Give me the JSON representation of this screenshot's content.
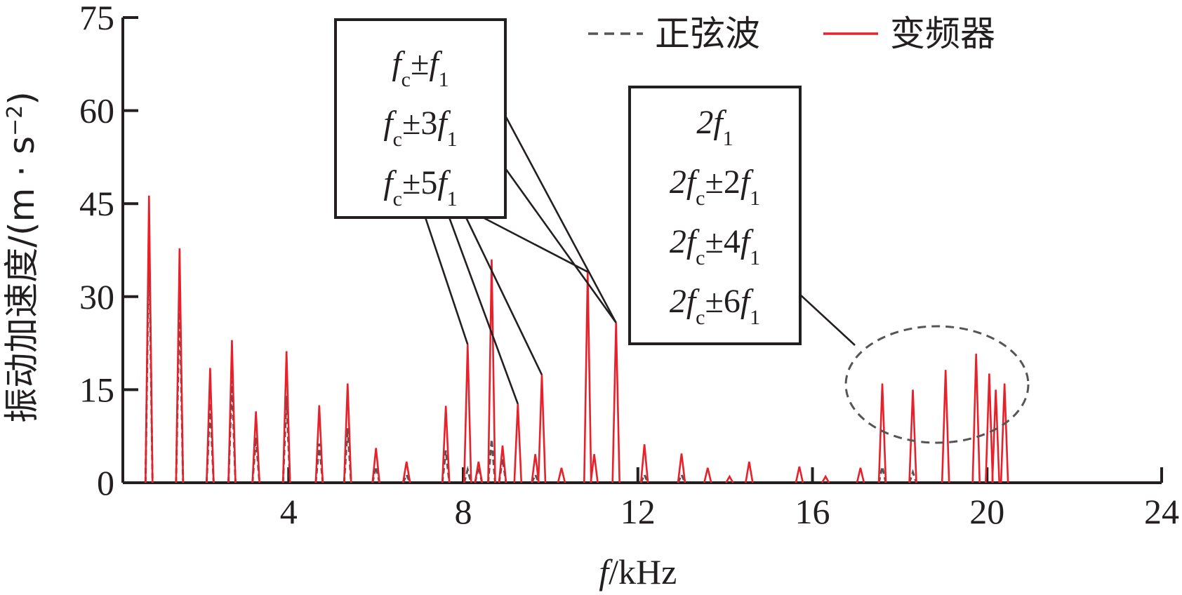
{
  "chart_data": {
    "type": "line",
    "title": "",
    "xlabel_italic": "f",
    "xlabel_unit": "/kHz",
    "ylabel": "振动加速度/(m · s",
    "ylabel_sup": "−2",
    "ylabel_close": ")",
    "xlim": [
      0.2,
      24
    ],
    "ylim": [
      0,
      75
    ],
    "xticks": [
      4,
      8,
      12,
      16,
      20,
      24
    ],
    "yticks": [
      0,
      15,
      30,
      45,
      60,
      75
    ],
    "legend_position": "top-right",
    "legend": [
      {
        "label": "正弦波",
        "style": "dashed",
        "color": "#555555"
      },
      {
        "label": "变频器",
        "style": "solid",
        "color": "#e8202a"
      }
    ],
    "series": [
      {
        "name": "变频器",
        "color": "#e8202a",
        "peaks": [
          [
            0.8,
            46.3
          ],
          [
            1.5,
            37.8
          ],
          [
            2.2,
            18.5
          ],
          [
            2.7,
            23.0
          ],
          [
            3.25,
            11.5
          ],
          [
            3.95,
            21.2
          ],
          [
            4.7,
            12.5
          ],
          [
            5.35,
            16.0
          ],
          [
            6.0,
            5.6
          ],
          [
            6.7,
            3.4
          ],
          [
            7.6,
            12.4
          ],
          [
            8.1,
            22.3
          ],
          [
            8.35,
            3.4
          ],
          [
            8.65,
            36.0
          ],
          [
            8.9,
            6.0
          ],
          [
            9.25,
            12.7
          ],
          [
            9.65,
            4.6
          ],
          [
            9.8,
            17.4
          ],
          [
            10.25,
            2.4
          ],
          [
            10.85,
            34.0
          ],
          [
            11.0,
            4.6
          ],
          [
            11.5,
            25.8
          ],
          [
            12.15,
            6.2
          ],
          [
            13.0,
            4.7
          ],
          [
            13.6,
            2.4
          ],
          [
            14.1,
            1.0
          ],
          [
            14.55,
            3.4
          ],
          [
            15.7,
            2.6
          ],
          [
            16.3,
            1.0
          ],
          [
            17.1,
            2.4
          ],
          [
            17.6,
            16.0
          ],
          [
            18.3,
            15.0
          ],
          [
            19.05,
            18.2
          ],
          [
            19.75,
            20.8
          ],
          [
            20.05,
            17.6
          ],
          [
            20.2,
            15.0
          ],
          [
            20.4,
            16.0
          ]
        ]
      },
      {
        "name": "正弦波",
        "color": "#555555",
        "peaks": [
          [
            0.8,
            40.5
          ],
          [
            1.5,
            30.5
          ],
          [
            2.2,
            12.9
          ],
          [
            2.7,
            16.5
          ],
          [
            3.25,
            7.3
          ],
          [
            3.95,
            14.0
          ],
          [
            4.7,
            6.3
          ],
          [
            5.35,
            8.8
          ],
          [
            6.0,
            2.6
          ],
          [
            6.7,
            1.3
          ],
          [
            7.6,
            5.2
          ],
          [
            8.1,
            2.1
          ],
          [
            8.35,
            2.6
          ],
          [
            8.65,
            7.0
          ],
          [
            8.9,
            3.9
          ],
          [
            9.65,
            1.3
          ],
          [
            12.15,
            1.3
          ],
          [
            13.0,
            1.3
          ],
          [
            17.6,
            2.6
          ],
          [
            18.3,
            1.7
          ]
        ]
      }
    ],
    "annotations": [
      {
        "lines": [
          {
            "a": "f",
            "sub": "c",
            "b": "±f",
            "sub2": "1"
          },
          {
            "a": "f",
            "sub": "c",
            "b": "±3f",
            "sub2": "1"
          },
          {
            "a": "f",
            "sub": "c",
            "b": "±5f",
            "sub2": "1"
          }
        ],
        "pointers": [
          [
            8.1,
            22.3
          ],
          [
            9.25,
            12.7
          ],
          [
            9.8,
            17.4
          ],
          [
            10.85,
            34.0
          ],
          [
            11.5,
            25.8
          ]
        ]
      },
      {
        "lines": [
          {
            "a": "2f",
            "sub": "1",
            "b": "",
            "sub2": ""
          },
          {
            "a": "2f",
            "sub": "c",
            "b": "±2f",
            "sub2": "1"
          },
          {
            "a": "2f",
            "sub": "c",
            "b": "±4f",
            "sub2": "1"
          },
          {
            "a": "2f",
            "sub": "c",
            "b": "±6f",
            "sub2": "1"
          }
        ],
        "pointers": [
          [
            17.8,
            22.5
          ]
        ]
      }
    ]
  }
}
